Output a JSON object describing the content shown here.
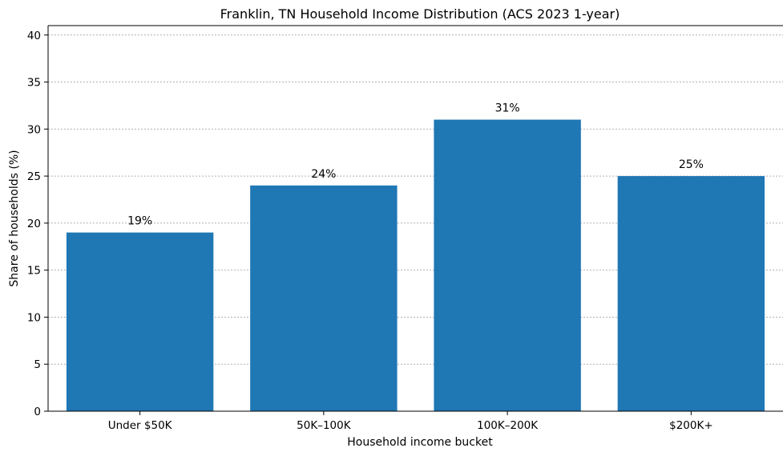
{
  "chart_data": {
    "type": "bar",
    "title": "Franklin, TN Household Income Distribution (ACS 2023 1-year)",
    "xlabel": "Household income bucket",
    "ylabel": "Share of households (%)",
    "categories": [
      "Under $50K",
      "50K–100K",
      "100K–200K",
      "$200K+"
    ],
    "values": [
      19,
      24,
      31,
      25
    ],
    "data_labels": [
      "19%",
      "24%",
      "31%",
      "25%"
    ],
    "ylim": [
      0,
      41
    ],
    "yticks": [
      0,
      5,
      10,
      15,
      20,
      25,
      30,
      35,
      40
    ],
    "grid": "y-major-dotted",
    "bar_color": "#1f77b4",
    "legend": "none"
  }
}
